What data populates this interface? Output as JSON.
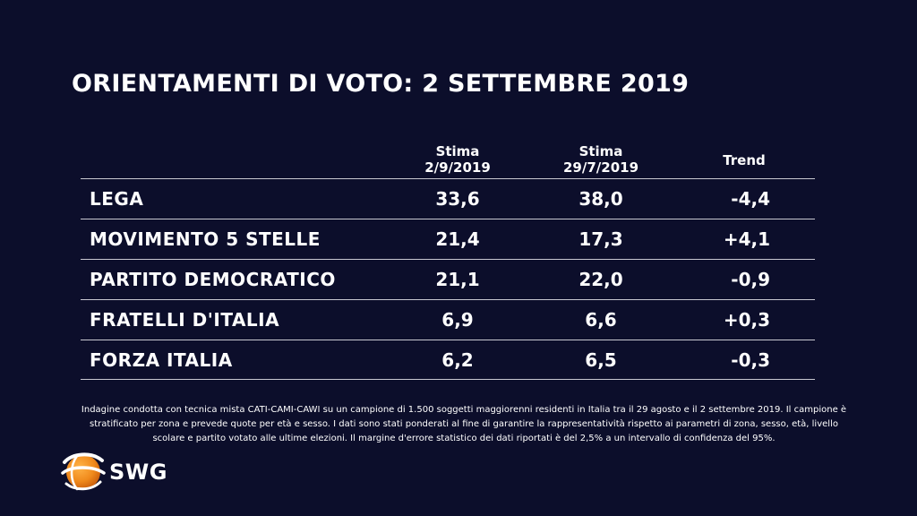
{
  "title": "ORIENTAMENTI DI VOTO: 2 SETTEMBRE 2019",
  "columns": {
    "stima1": [
      "Stima",
      "2/9/2019"
    ],
    "stima2": [
      "Stima",
      "29/7/2019"
    ],
    "trend": "Trend"
  },
  "rows": [
    {
      "party": "LEGA",
      "stima_current": "33,6",
      "stima_previous": "38,0",
      "trend": "-4,4"
    },
    {
      "party": "MOVIMENTO 5 STELLE",
      "stima_current": "21,4",
      "stima_previous": "17,3",
      "trend": "+4,1"
    },
    {
      "party": "PARTITO DEMOCRATICO",
      "stima_current": "21,1",
      "stima_previous": "22,0",
      "trend": "-0,9"
    },
    {
      "party": "FRATELLI D'ITALIA",
      "stima_current": "6,9",
      "stima_previous": "6,6",
      "trend": "+0,3"
    },
    {
      "party": "FORZA ITALIA",
      "stima_current": "6,2",
      "stima_previous": "6,5",
      "trend": "-0,3"
    }
  ],
  "footnote": "Indagine condotta con tecnica mista CATI-CAMI-CAWI su un campione di 1.500 soggetti maggiorenni residenti in Italia tra il 29 agosto e il  2 settembre 2019. Il campione è stratificato per zona e prevede quote per età e sesso. I dati sono stati ponderati al fine di garantire la rappresentatività rispetto ai parametri di zona, sesso, età, livello scolare e partito votato alle ultime elezioni. Il margine d'errore statistico dei dati riportati è del 2,5% a un intervallo di confidenza del 95%.",
  "logo": {
    "text": "SWG",
    "icon": "swg-globe-icon",
    "accent": "#f08a1c"
  },
  "colors": {
    "background": "#0c0e2b",
    "text": "#ffffff",
    "rule": "#c8c8d0"
  }
}
